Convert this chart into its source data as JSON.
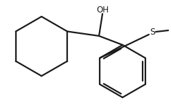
{
  "bg_color": "#ffffff",
  "line_color": "#1a1a1a",
  "line_width": 1.6,
  "font_size": 8.5,
  "oh_label": "OH",
  "s_label": "S",
  "figsize": [
    2.47,
    1.52
  ],
  "dpi": 100
}
